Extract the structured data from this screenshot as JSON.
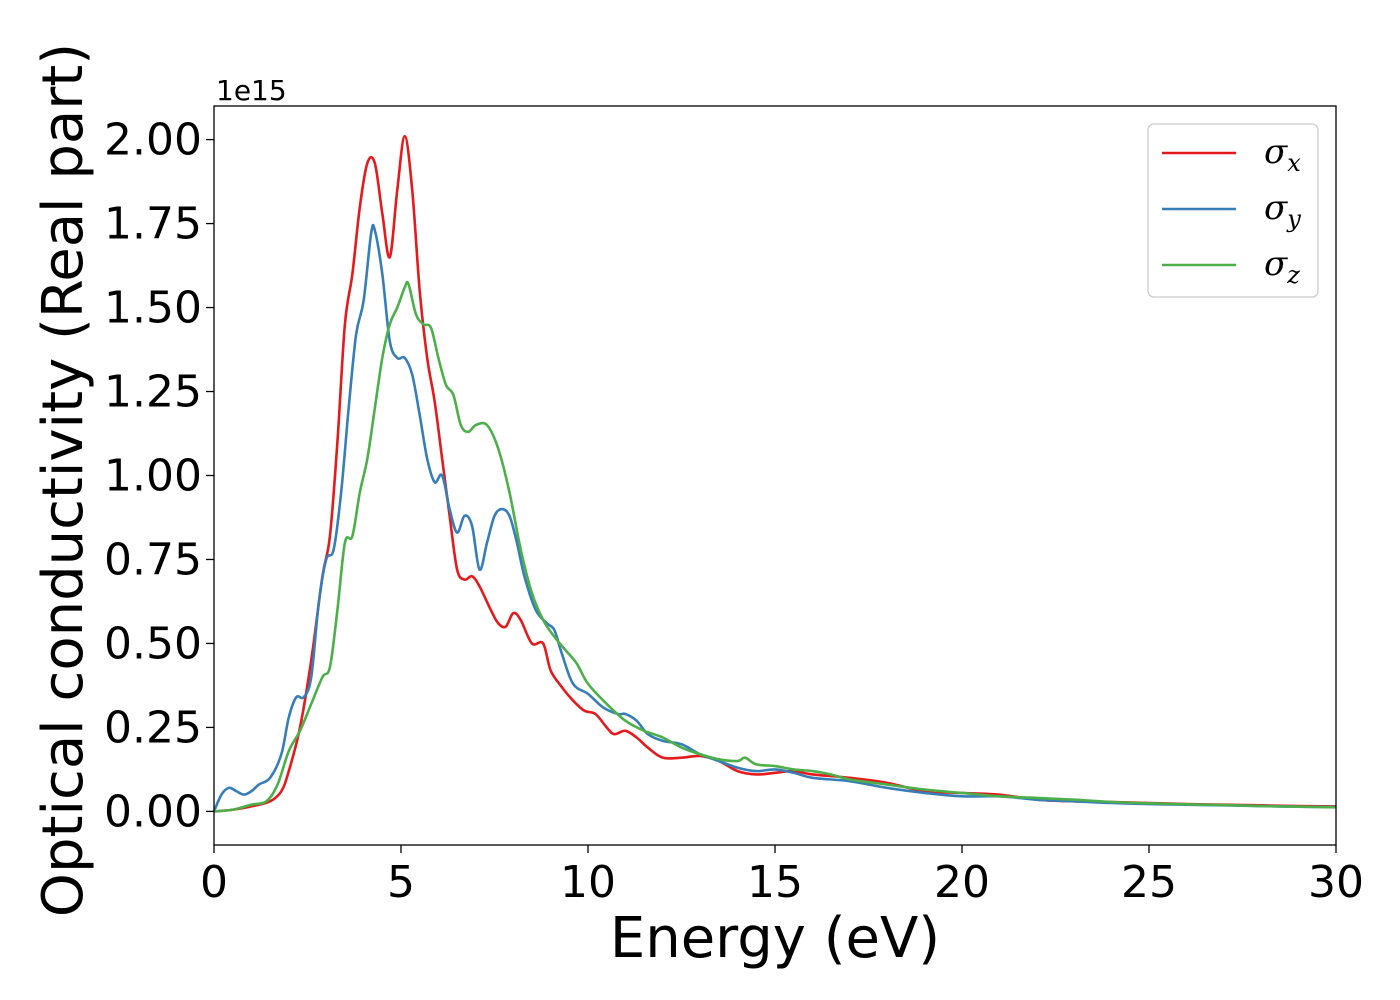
{
  "chart_data": {
    "type": "line",
    "xlabel": "Energy (eV)",
    "ylabel": "Optical conductivity (Real part)",
    "y_offset_label": "1e15",
    "xlim": [
      0,
      30
    ],
    "ylim": [
      -0.1,
      2.1
    ],
    "y_unit_multiplier": 1000000000000000.0,
    "grid": false,
    "legend_position": "top-right",
    "x_ticks": [
      0,
      5,
      10,
      15,
      20,
      25,
      30
    ],
    "x_tick_labels": [
      "0",
      "5",
      "10",
      "15",
      "20",
      "25",
      "30"
    ],
    "y_ticks": [
      0.0,
      0.25,
      0.5,
      0.75,
      1.0,
      1.25,
      1.5,
      1.75,
      2.0
    ],
    "y_tick_labels": [
      "0.00",
      "0.25",
      "0.50",
      "0.75",
      "1.00",
      "1.25",
      "1.50",
      "1.75",
      "2.00"
    ],
    "series": [
      {
        "name": "σx",
        "symbol": "σ",
        "subscript": "x",
        "color": "#e41a1c",
        "points": [
          [
            0,
            0.0
          ],
          [
            0.5,
            0.005
          ],
          [
            1.0,
            0.015
          ],
          [
            1.5,
            0.03
          ],
          [
            1.8,
            0.06
          ],
          [
            2.0,
            0.12
          ],
          [
            2.3,
            0.25
          ],
          [
            2.6,
            0.45
          ],
          [
            2.9,
            0.7
          ],
          [
            3.1,
            0.82
          ],
          [
            3.3,
            1.1
          ],
          [
            3.5,
            1.45
          ],
          [
            3.7,
            1.6
          ],
          [
            3.9,
            1.8
          ],
          [
            4.1,
            1.93
          ],
          [
            4.3,
            1.93
          ],
          [
            4.5,
            1.78
          ],
          [
            4.7,
            1.65
          ],
          [
            4.9,
            1.85
          ],
          [
            5.1,
            2.01
          ],
          [
            5.3,
            1.85
          ],
          [
            5.5,
            1.55
          ],
          [
            5.7,
            1.35
          ],
          [
            5.9,
            1.22
          ],
          [
            6.1,
            1.05
          ],
          [
            6.3,
            0.88
          ],
          [
            6.5,
            0.72
          ],
          [
            6.7,
            0.69
          ],
          [
            6.9,
            0.7
          ],
          [
            7.1,
            0.67
          ],
          [
            7.4,
            0.6
          ],
          [
            7.6,
            0.56
          ],
          [
            7.8,
            0.55
          ],
          [
            8.0,
            0.59
          ],
          [
            8.2,
            0.57
          ],
          [
            8.5,
            0.5
          ],
          [
            8.8,
            0.5
          ],
          [
            9.0,
            0.42
          ],
          [
            9.3,
            0.37
          ],
          [
            9.6,
            0.33
          ],
          [
            9.9,
            0.3
          ],
          [
            10.2,
            0.29
          ],
          [
            10.5,
            0.25
          ],
          [
            10.7,
            0.23
          ],
          [
            11.0,
            0.24
          ],
          [
            11.3,
            0.22
          ],
          [
            11.6,
            0.19
          ],
          [
            12.0,
            0.16
          ],
          [
            12.5,
            0.16
          ],
          [
            13.0,
            0.165
          ],
          [
            13.5,
            0.15
          ],
          [
            14.0,
            0.12
          ],
          [
            14.5,
            0.11
          ],
          [
            15.0,
            0.115
          ],
          [
            15.5,
            0.12
          ],
          [
            16.0,
            0.11
          ],
          [
            17.0,
            0.1
          ],
          [
            18.0,
            0.085
          ],
          [
            19.0,
            0.06
          ],
          [
            20.0,
            0.055
          ],
          [
            21.0,
            0.05
          ],
          [
            22.0,
            0.035
          ],
          [
            23.0,
            0.03
          ],
          [
            24.0,
            0.028
          ],
          [
            25.0,
            0.025
          ],
          [
            26.0,
            0.022
          ],
          [
            27.0,
            0.02
          ],
          [
            28.0,
            0.018
          ],
          [
            29.0,
            0.016
          ],
          [
            30.0,
            0.015
          ]
        ]
      },
      {
        "name": "σy",
        "symbol": "σ",
        "subscript": "y",
        "color": "#377eb8",
        "points": [
          [
            0,
            0.0
          ],
          [
            0.2,
            0.05
          ],
          [
            0.4,
            0.07
          ],
          [
            0.6,
            0.06
          ],
          [
            0.8,
            0.05
          ],
          [
            1.0,
            0.06
          ],
          [
            1.2,
            0.08
          ],
          [
            1.5,
            0.1
          ],
          [
            1.8,
            0.17
          ],
          [
            2.0,
            0.28
          ],
          [
            2.2,
            0.34
          ],
          [
            2.4,
            0.34
          ],
          [
            2.6,
            0.4
          ],
          [
            2.8,
            0.62
          ],
          [
            3.0,
            0.75
          ],
          [
            3.2,
            0.78
          ],
          [
            3.4,
            0.95
          ],
          [
            3.6,
            1.2
          ],
          [
            3.8,
            1.42
          ],
          [
            4.0,
            1.52
          ],
          [
            4.2,
            1.72
          ],
          [
            4.3,
            1.73
          ],
          [
            4.5,
            1.6
          ],
          [
            4.7,
            1.4
          ],
          [
            4.9,
            1.35
          ],
          [
            5.1,
            1.35
          ],
          [
            5.3,
            1.3
          ],
          [
            5.5,
            1.18
          ],
          [
            5.7,
            1.05
          ],
          [
            5.9,
            0.98
          ],
          [
            6.1,
            1.0
          ],
          [
            6.3,
            0.9
          ],
          [
            6.5,
            0.83
          ],
          [
            6.7,
            0.88
          ],
          [
            6.9,
            0.85
          ],
          [
            7.1,
            0.72
          ],
          [
            7.3,
            0.8
          ],
          [
            7.5,
            0.88
          ],
          [
            7.7,
            0.9
          ],
          [
            7.9,
            0.88
          ],
          [
            8.1,
            0.8
          ],
          [
            8.3,
            0.7
          ],
          [
            8.6,
            0.6
          ],
          [
            8.9,
            0.56
          ],
          [
            9.1,
            0.54
          ],
          [
            9.3,
            0.47
          ],
          [
            9.6,
            0.38
          ],
          [
            10.0,
            0.35
          ],
          [
            10.4,
            0.31
          ],
          [
            10.8,
            0.29
          ],
          [
            11.0,
            0.29
          ],
          [
            11.3,
            0.27
          ],
          [
            11.6,
            0.23
          ],
          [
            12.0,
            0.21
          ],
          [
            12.5,
            0.2
          ],
          [
            13.0,
            0.17
          ],
          [
            13.5,
            0.15
          ],
          [
            14.0,
            0.13
          ],
          [
            14.5,
            0.12
          ],
          [
            15.0,
            0.125
          ],
          [
            15.5,
            0.115
          ],
          [
            16.0,
            0.1
          ],
          [
            17.0,
            0.09
          ],
          [
            18.0,
            0.07
          ],
          [
            19.0,
            0.055
          ],
          [
            20.0,
            0.045
          ],
          [
            21.0,
            0.045
          ],
          [
            22.0,
            0.035
          ],
          [
            23.0,
            0.03
          ],
          [
            24.0,
            0.025
          ],
          [
            25.0,
            0.022
          ],
          [
            26.0,
            0.02
          ],
          [
            27.0,
            0.018
          ],
          [
            28.0,
            0.016
          ],
          [
            29.0,
            0.014
          ],
          [
            30.0,
            0.013
          ]
        ]
      },
      {
        "name": "σz",
        "symbol": "σ",
        "subscript": "z",
        "color": "#4daf4a",
        "points": [
          [
            0,
            0.0
          ],
          [
            0.5,
            0.005
          ],
          [
            1.0,
            0.02
          ],
          [
            1.4,
            0.03
          ],
          [
            1.7,
            0.08
          ],
          [
            2.0,
            0.18
          ],
          [
            2.3,
            0.24
          ],
          [
            2.6,
            0.32
          ],
          [
            2.9,
            0.4
          ],
          [
            3.1,
            0.43
          ],
          [
            3.3,
            0.6
          ],
          [
            3.5,
            0.8
          ],
          [
            3.7,
            0.82
          ],
          [
            3.9,
            0.95
          ],
          [
            4.1,
            1.05
          ],
          [
            4.3,
            1.2
          ],
          [
            4.5,
            1.35
          ],
          [
            4.7,
            1.45
          ],
          [
            4.9,
            1.5
          ],
          [
            5.1,
            1.56
          ],
          [
            5.2,
            1.57
          ],
          [
            5.4,
            1.48
          ],
          [
            5.6,
            1.45
          ],
          [
            5.8,
            1.44
          ],
          [
            6.0,
            1.35
          ],
          [
            6.2,
            1.27
          ],
          [
            6.4,
            1.24
          ],
          [
            6.6,
            1.15
          ],
          [
            6.8,
            1.13
          ],
          [
            7.0,
            1.15
          ],
          [
            7.3,
            1.15
          ],
          [
            7.6,
            1.08
          ],
          [
            7.9,
            0.95
          ],
          [
            8.2,
            0.78
          ],
          [
            8.5,
            0.65
          ],
          [
            8.8,
            0.57
          ],
          [
            9.1,
            0.52
          ],
          [
            9.4,
            0.48
          ],
          [
            9.7,
            0.44
          ],
          [
            10.0,
            0.38
          ],
          [
            10.5,
            0.32
          ],
          [
            11.0,
            0.27
          ],
          [
            11.5,
            0.24
          ],
          [
            12.0,
            0.22
          ],
          [
            12.5,
            0.19
          ],
          [
            13.0,
            0.17
          ],
          [
            13.5,
            0.155
          ],
          [
            14.0,
            0.15
          ],
          [
            14.2,
            0.16
          ],
          [
            14.5,
            0.14
          ],
          [
            15.0,
            0.135
          ],
          [
            15.5,
            0.125
          ],
          [
            16.0,
            0.12
          ],
          [
            16.5,
            0.11
          ],
          [
            17.0,
            0.095
          ],
          [
            18.0,
            0.08
          ],
          [
            19.0,
            0.065
          ],
          [
            20.0,
            0.055
          ],
          [
            21.0,
            0.045
          ],
          [
            22.0,
            0.04
          ],
          [
            23.0,
            0.035
          ],
          [
            24.0,
            0.028
          ],
          [
            25.0,
            0.024
          ],
          [
            26.0,
            0.021
          ],
          [
            27.0,
            0.019
          ],
          [
            28.0,
            0.016
          ],
          [
            29.0,
            0.014
          ],
          [
            30.0,
            0.012
          ]
        ]
      }
    ]
  }
}
